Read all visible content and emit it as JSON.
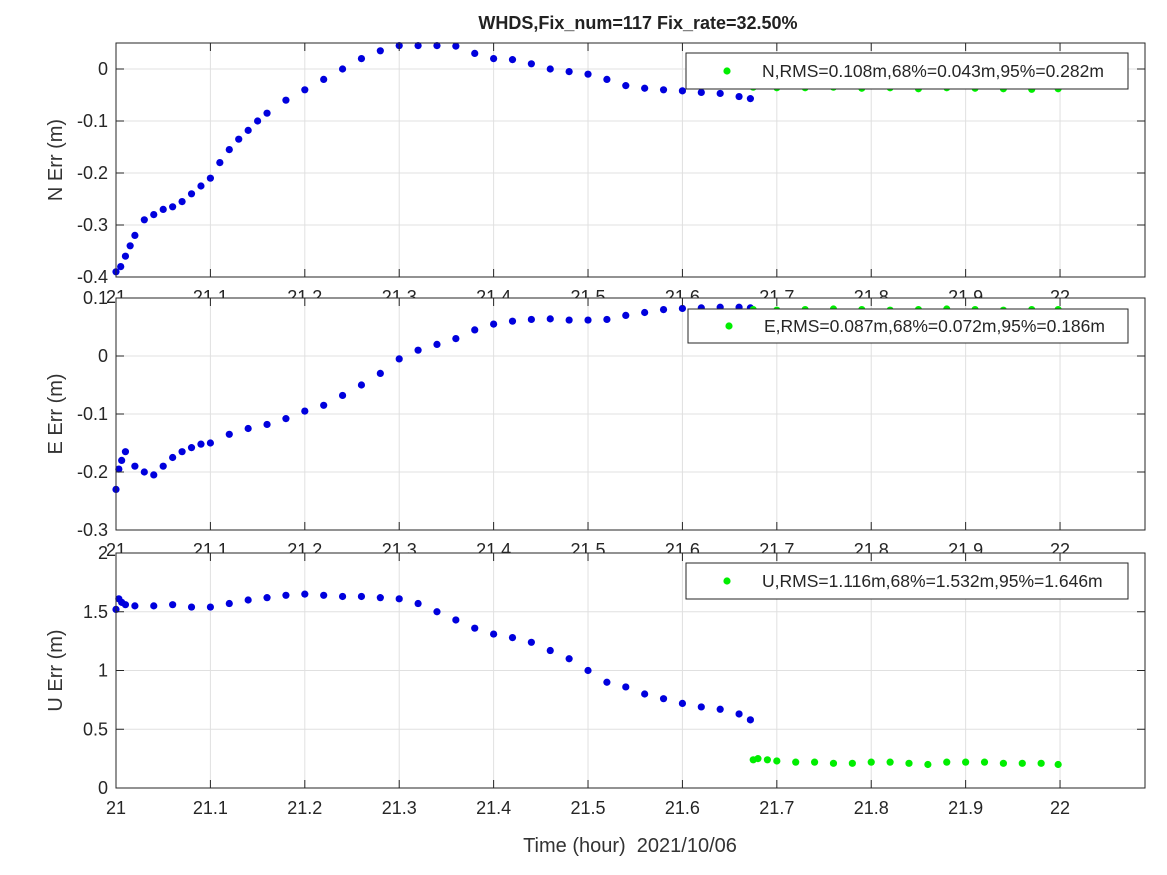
{
  "chart_data": {
    "type": "scatter",
    "title": "WHDS,Fix_num=117 Fix_rate=32.50%",
    "xlabel": "Time (hour)  2021/10/06",
    "xlim": [
      21,
      22.09
    ],
    "xticks": [
      21,
      21.1,
      21.2,
      21.3,
      21.4,
      21.5,
      21.6,
      21.7,
      21.8,
      21.9,
      22
    ],
    "xtick_labels": [
      "21",
      "21.1",
      "21.2",
      "21.3",
      "21.4",
      "21.5",
      "21.6",
      "21.7",
      "21.8",
      "21.9",
      "22"
    ],
    "grid": true,
    "series_colors": {
      "float": "#0000dd",
      "fixed": "#00ee00"
    },
    "panels": [
      {
        "ylabel": "N Err (m)",
        "ylim": [
          -0.4,
          0.05
        ],
        "yticks": [
          -0.4,
          -0.3,
          -0.2,
          -0.1,
          0
        ],
        "ytick_labels": [
          "-0.4",
          "-0.3",
          "-0.2",
          "-0.1",
          "0"
        ],
        "legend": "N,RMS=0.108m,68%=0.043m,95%=0.282m",
        "legend_position": "top-right",
        "blue": {
          "x": [
            21.0,
            21.005,
            21.01,
            21.015,
            21.02,
            21.03,
            21.04,
            21.05,
            21.06,
            21.07,
            21.08,
            21.09,
            21.1,
            21.11,
            21.12,
            21.13,
            21.14,
            21.15,
            21.16,
            21.18,
            21.2,
            21.22,
            21.24,
            21.26,
            21.28,
            21.3,
            21.32,
            21.34,
            21.36,
            21.38,
            21.4,
            21.42,
            21.44,
            21.46,
            21.48,
            21.5,
            21.52,
            21.54,
            21.56,
            21.58,
            21.6,
            21.62,
            21.64,
            21.66,
            21.672
          ],
          "y": [
            -0.39,
            -0.38,
            -0.36,
            -0.34,
            -0.32,
            -0.29,
            -0.28,
            -0.27,
            -0.265,
            -0.255,
            -0.24,
            -0.225,
            -0.21,
            -0.18,
            -0.155,
            -0.135,
            -0.118,
            -0.1,
            -0.085,
            -0.06,
            -0.04,
            -0.02,
            0.0,
            0.02,
            0.035,
            0.045,
            0.045,
            0.045,
            0.044,
            0.03,
            0.02,
            0.018,
            0.01,
            0.0,
            -0.005,
            -0.01,
            -0.02,
            -0.032,
            -0.037,
            -0.04,
            -0.042,
            -0.045,
            -0.047,
            -0.053,
            -0.057
          ]
        },
        "green": {
          "x": [
            21.675,
            21.7,
            21.73,
            21.76,
            21.79,
            21.82,
            21.85,
            21.88,
            21.91,
            21.94,
            21.97,
            21.998
          ],
          "y": [
            -0.035,
            -0.036,
            -0.036,
            -0.035,
            -0.037,
            -0.036,
            -0.038,
            -0.036,
            -0.037,
            -0.038,
            -0.039,
            -0.038
          ]
        }
      },
      {
        "ylabel": "E Err (m)",
        "ylim": [
          -0.3,
          0.1
        ],
        "yticks": [
          -0.3,
          -0.2,
          -0.1,
          0,
          0.1
        ],
        "ytick_labels": [
          "-0.3",
          "-0.2",
          "-0.1",
          "0",
          "0.1"
        ],
        "legend": "E,RMS=0.087m,68%=0.072m,95%=0.186m",
        "legend_position": "top-right",
        "blue": {
          "x": [
            21.0,
            21.003,
            21.006,
            21.01,
            21.02,
            21.03,
            21.04,
            21.05,
            21.06,
            21.07,
            21.08,
            21.09,
            21.1,
            21.12,
            21.14,
            21.16,
            21.18,
            21.2,
            21.22,
            21.24,
            21.26,
            21.28,
            21.3,
            21.32,
            21.34,
            21.36,
            21.38,
            21.4,
            21.42,
            21.44,
            21.46,
            21.48,
            21.5,
            21.52,
            21.54,
            21.56,
            21.58,
            21.6,
            21.62,
            21.64,
            21.66,
            21.672
          ],
          "y": [
            -0.23,
            -0.195,
            -0.18,
            -0.165,
            -0.19,
            -0.2,
            -0.205,
            -0.19,
            -0.175,
            -0.165,
            -0.158,
            -0.152,
            -0.15,
            -0.135,
            -0.125,
            -0.118,
            -0.108,
            -0.095,
            -0.085,
            -0.068,
            -0.05,
            -0.03,
            -0.005,
            0.01,
            0.02,
            0.03,
            0.045,
            0.055,
            0.06,
            0.063,
            0.064,
            0.062,
            0.062,
            0.063,
            0.07,
            0.075,
            0.08,
            0.082,
            0.083,
            0.084,
            0.084,
            0.083
          ]
        },
        "green": {
          "x": [
            21.675,
            21.7,
            21.73,
            21.76,
            21.79,
            21.82,
            21.85,
            21.88,
            21.91,
            21.94,
            21.97,
            21.998
          ],
          "y": [
            0.08,
            0.079,
            0.08,
            0.081,
            0.08,
            0.079,
            0.08,
            0.081,
            0.08,
            0.079,
            0.08,
            0.08
          ]
        }
      },
      {
        "ylabel": "U Err (m)",
        "ylim": [
          0,
          2
        ],
        "yticks": [
          0,
          0.5,
          1,
          1.5,
          2
        ],
        "ytick_labels": [
          "0",
          "0.5",
          "1",
          "1.5",
          "2"
        ],
        "legend": "U,RMS=1.116m,68%=1.532m,95%=1.646m",
        "legend_position": "top-right",
        "blue": {
          "x": [
            21.0,
            21.003,
            21.006,
            21.01,
            21.02,
            21.04,
            21.06,
            21.08,
            21.1,
            21.12,
            21.14,
            21.16,
            21.18,
            21.2,
            21.22,
            21.24,
            21.26,
            21.28,
            21.3,
            21.32,
            21.34,
            21.36,
            21.38,
            21.4,
            21.42,
            21.44,
            21.46,
            21.48,
            21.5,
            21.52,
            21.54,
            21.56,
            21.58,
            21.6,
            21.62,
            21.64,
            21.66,
            21.672
          ],
          "y": [
            1.52,
            1.61,
            1.58,
            1.56,
            1.55,
            1.55,
            1.56,
            1.54,
            1.54,
            1.57,
            1.6,
            1.62,
            1.64,
            1.65,
            1.64,
            1.63,
            1.63,
            1.62,
            1.61,
            1.57,
            1.5,
            1.43,
            1.36,
            1.31,
            1.28,
            1.24,
            1.17,
            1.1,
            1.0,
            0.9,
            0.86,
            0.8,
            0.76,
            0.72,
            0.69,
            0.67,
            0.63,
            0.58
          ]
        },
        "green": {
          "x": [
            21.675,
            21.68,
            21.69,
            21.7,
            21.72,
            21.74,
            21.76,
            21.78,
            21.8,
            21.82,
            21.84,
            21.86,
            21.88,
            21.9,
            21.92,
            21.94,
            21.96,
            21.98,
            21.998
          ],
          "y": [
            0.24,
            0.25,
            0.24,
            0.23,
            0.22,
            0.22,
            0.21,
            0.21,
            0.22,
            0.22,
            0.21,
            0.2,
            0.22,
            0.22,
            0.22,
            0.21,
            0.21,
            0.21,
            0.2
          ]
        }
      }
    ]
  }
}
